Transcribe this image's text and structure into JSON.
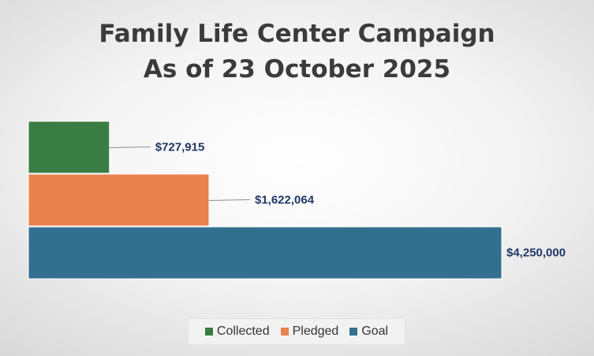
{
  "chart_data": {
    "type": "bar",
    "orientation": "horizontal",
    "title": "Family Life Center Campaign",
    "subtitle": "As of 23 October 2025",
    "categories": [
      "Collected",
      "Pledged",
      "Goal"
    ],
    "values": [
      727915,
      1622064,
      4250000
    ],
    "value_labels": [
      "$727,915",
      "$1,622,064",
      "$4,250,000"
    ],
    "colors": [
      "#3a7d44",
      "#e8834e",
      "#33708f"
    ],
    "xlim": [
      0,
      4250000
    ],
    "grid": false,
    "legend": {
      "position": "bottom",
      "entries": [
        "Collected",
        "Pledged",
        "Goal"
      ]
    }
  }
}
